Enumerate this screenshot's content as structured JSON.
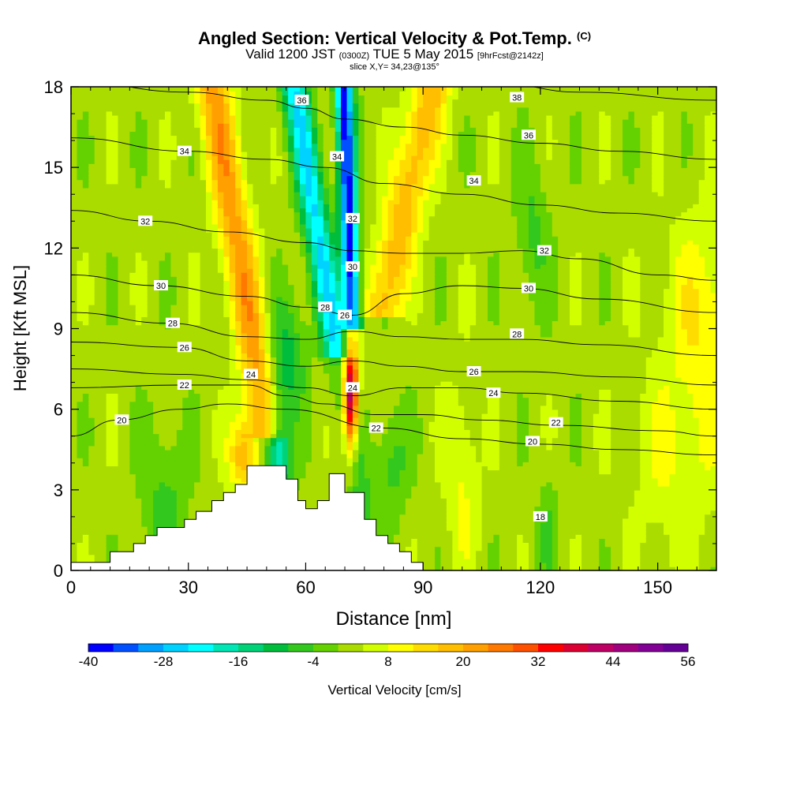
{
  "title": {
    "main": "Angled Section: Vertical Velocity & Pot.Temp.",
    "units": "(C)",
    "valid_prefix": "Valid 1200 JST",
    "valid_utc": "(0300Z)",
    "valid_date": "TUE 5 May 2015",
    "forecast": "[9hrFcst@2142z]",
    "slice": "slice X,Y= 34,23@135°"
  },
  "chart_data": {
    "type": "heatmap",
    "xlabel": "Distance [nm]",
    "ylabel": "Height [Kft MSL]",
    "xlim": [
      0,
      165
    ],
    "ylim": [
      0,
      18
    ],
    "x_ticks": [
      0,
      30,
      60,
      90,
      120,
      150
    ],
    "y_ticks": [
      0,
      3,
      6,
      9,
      12,
      15,
      18
    ],
    "colorbar": {
      "label": "Vertical Velocity [cm/s]",
      "min": -40,
      "max": 56,
      "step": 4,
      "tick_labels": [
        -40,
        -28,
        -16,
        -4,
        8,
        20,
        32,
        44,
        56
      ],
      "colors": [
        "#0000ff",
        "#0050ff",
        "#00a0ff",
        "#00d2ff",
        "#00ffff",
        "#00e6b4",
        "#00d278",
        "#00be3c",
        "#32c81e",
        "#64d200",
        "#aadc00",
        "#d2ff00",
        "#ffff00",
        "#ffdc00",
        "#ffbe00",
        "#ffa000",
        "#ff7800",
        "#ff5000",
        "#ff0000",
        "#dc0032",
        "#be0064",
        "#a0007d",
        "#820096",
        "#640096"
      ]
    },
    "terrain": [
      [
        0,
        0.3
      ],
      [
        10,
        0.3
      ],
      [
        10,
        0.7
      ],
      [
        16,
        0.7
      ],
      [
        16,
        1.0
      ],
      [
        19,
        1.0
      ],
      [
        19,
        1.3
      ],
      [
        22,
        1.3
      ],
      [
        22,
        1.6
      ],
      [
        29,
        1.6
      ],
      [
        29,
        1.9
      ],
      [
        32,
        1.9
      ],
      [
        32,
        2.2
      ],
      [
        36,
        2.2
      ],
      [
        36,
        2.6
      ],
      [
        39,
        2.6
      ],
      [
        39,
        2.9
      ],
      [
        42,
        2.9
      ],
      [
        42,
        3.2
      ],
      [
        45,
        3.2
      ],
      [
        45,
        3.9
      ],
      [
        55,
        3.9
      ],
      [
        55,
        3.4
      ],
      [
        58,
        3.4
      ],
      [
        58,
        2.6
      ],
      [
        60,
        2.6
      ],
      [
        60,
        2.3
      ],
      [
        63,
        2.3
      ],
      [
        63,
        2.6
      ],
      [
        66,
        2.6
      ],
      [
        66,
        3.6
      ],
      [
        70,
        3.6
      ],
      [
        70,
        2.9
      ],
      [
        75,
        2.9
      ],
      [
        75,
        1.9
      ],
      [
        78,
        1.9
      ],
      [
        78,
        1.3
      ],
      [
        81,
        1.3
      ],
      [
        81,
        1.0
      ],
      [
        84,
        1.0
      ],
      [
        84,
        0.7
      ],
      [
        87,
        0.7
      ],
      [
        87,
        0.3
      ],
      [
        90,
        0.3
      ],
      [
        90,
        0
      ],
      [
        0,
        0
      ]
    ],
    "contours": [
      {
        "label": "36",
        "points": [
          [
            0,
            18.2
          ],
          [
            30,
            17.8
          ],
          [
            50,
            17.5
          ],
          [
            60,
            17.2
          ],
          [
            70,
            16.8
          ],
          [
            85,
            16.5
          ],
          [
            100,
            16.2
          ],
          [
            120,
            15.9
          ],
          [
            140,
            15.6
          ],
          [
            165,
            15.3
          ]
        ],
        "label_at": [
          59,
          17.5
        ]
      },
      {
        "label": "38",
        "points": [
          [
            110,
            18.1
          ],
          [
            130,
            17.8
          ],
          [
            165,
            17.5
          ]
        ],
        "label_at": [
          114,
          17.6
        ]
      },
      {
        "label": "34",
        "points": [
          [
            0,
            16.1
          ],
          [
            30,
            15.6
          ],
          [
            50,
            15.3
          ],
          [
            65,
            15.0
          ],
          [
            80,
            14.4
          ],
          [
            100,
            14.0
          ],
          [
            120,
            13.6
          ],
          [
            140,
            13.3
          ],
          [
            165,
            13.0
          ]
        ],
        "label_at": [
          29,
          15.6
        ]
      },
      {
        "label": "32",
        "points": [
          [
            0,
            13.4
          ],
          [
            20,
            13.0
          ],
          [
            40,
            12.6
          ],
          [
            60,
            12.2
          ],
          [
            72,
            11.9
          ],
          [
            85,
            11.8
          ],
          [
            100,
            11.8
          ],
          [
            115,
            11.9
          ],
          [
            130,
            11.6
          ],
          [
            150,
            11.0
          ],
          [
            165,
            10.8
          ]
        ],
        "label_at": [
          19,
          13.0
        ]
      },
      {
        "label": "30",
        "points": [
          [
            0,
            11.0
          ],
          [
            22,
            10.6
          ],
          [
            45,
            10.2
          ],
          [
            60,
            9.8
          ],
          [
            72,
            9.5
          ],
          [
            85,
            10.3
          ],
          [
            100,
            10.6
          ],
          [
            115,
            10.5
          ],
          [
            135,
            10.1
          ],
          [
            165,
            9.6
          ]
        ],
        "label_at": [
          23,
          10.6
        ]
      },
      {
        "label": "28",
        "points": [
          [
            0,
            9.6
          ],
          [
            25,
            9.2
          ],
          [
            45,
            8.7
          ],
          [
            60,
            8.6
          ],
          [
            72,
            8.9
          ],
          [
            85,
            8.7
          ],
          [
            100,
            8.6
          ],
          [
            115,
            8.6
          ],
          [
            135,
            8.4
          ],
          [
            165,
            8.0
          ]
        ],
        "label_at": [
          26,
          9.2
        ]
      },
      {
        "label": "26",
        "points": [
          [
            0,
            8.5
          ],
          [
            28,
            8.3
          ],
          [
            45,
            7.8
          ],
          [
            60,
            7.6
          ],
          [
            72,
            7.8
          ],
          [
            85,
            7.6
          ],
          [
            100,
            7.4
          ],
          [
            115,
            7.4
          ],
          [
            140,
            7.2
          ],
          [
            165,
            6.9
          ]
        ],
        "label_at": [
          29,
          8.3
        ]
      },
      {
        "label": "24",
        "points": [
          [
            0,
            7.5
          ],
          [
            28,
            7.3
          ],
          [
            45,
            7.1
          ],
          [
            60,
            6.8
          ],
          [
            72,
            6.5
          ],
          [
            85,
            6.8
          ],
          [
            100,
            6.8
          ],
          [
            115,
            6.6
          ],
          [
            140,
            6.3
          ],
          [
            165,
            6.0
          ]
        ],
        "label_at": [
          46,
          7.3
        ]
      },
      {
        "label": "22",
        "points": [
          [
            0,
            6.8
          ],
          [
            28,
            6.9
          ],
          [
            45,
            6.9
          ],
          [
            55,
            6.5
          ],
          [
            65,
            6.2
          ],
          [
            78,
            5.8
          ],
          [
            90,
            5.8
          ],
          [
            105,
            5.6
          ],
          [
            125,
            5.4
          ],
          [
            150,
            5.2
          ],
          [
            165,
            5.0
          ]
        ],
        "label_at": [
          29,
          6.9
        ]
      },
      {
        "label": "20",
        "points": [
          [
            0,
            5.0
          ],
          [
            12,
            5.6
          ],
          [
            28,
            6.0
          ],
          [
            40,
            6.2
          ],
          [
            55,
            6.0
          ],
          [
            80,
            5.3
          ],
          [
            100,
            4.9
          ],
          [
            120,
            4.7
          ],
          [
            140,
            4.5
          ],
          [
            165,
            4.3
          ]
        ],
        "label_at": [
          13,
          5.6
        ]
      }
    ],
    "contour_labels": [
      {
        "label": "36",
        "x": 117,
        "y": 16.2
      },
      {
        "label": "34",
        "x": 103,
        "y": 14.5
      },
      {
        "label": "34",
        "x": 68,
        "y": 15.4
      },
      {
        "label": "32",
        "x": 72,
        "y": 13.1
      },
      {
        "label": "32",
        "x": 121,
        "y": 11.9
      },
      {
        "label": "30",
        "x": 72,
        "y": 11.3
      },
      {
        "label": "30",
        "x": 117,
        "y": 10.5
      },
      {
        "label": "28",
        "x": 65,
        "y": 9.8
      },
      {
        "label": "28",
        "x": 114,
        "y": 8.8
      },
      {
        "label": "26",
        "x": 70,
        "y": 9.5
      },
      {
        "label": "26",
        "x": 103,
        "y": 7.4
      },
      {
        "label": "24",
        "x": 72,
        "y": 6.8
      },
      {
        "label": "24",
        "x": 108,
        "y": 6.6
      },
      {
        "label": "22",
        "x": 78,
        "y": 5.3
      },
      {
        "label": "22",
        "x": 124,
        "y": 5.5
      },
      {
        "label": "20",
        "x": 118,
        "y": 4.8
      },
      {
        "label": "18",
        "x": 120,
        "y": 2.0
      }
    ]
  }
}
